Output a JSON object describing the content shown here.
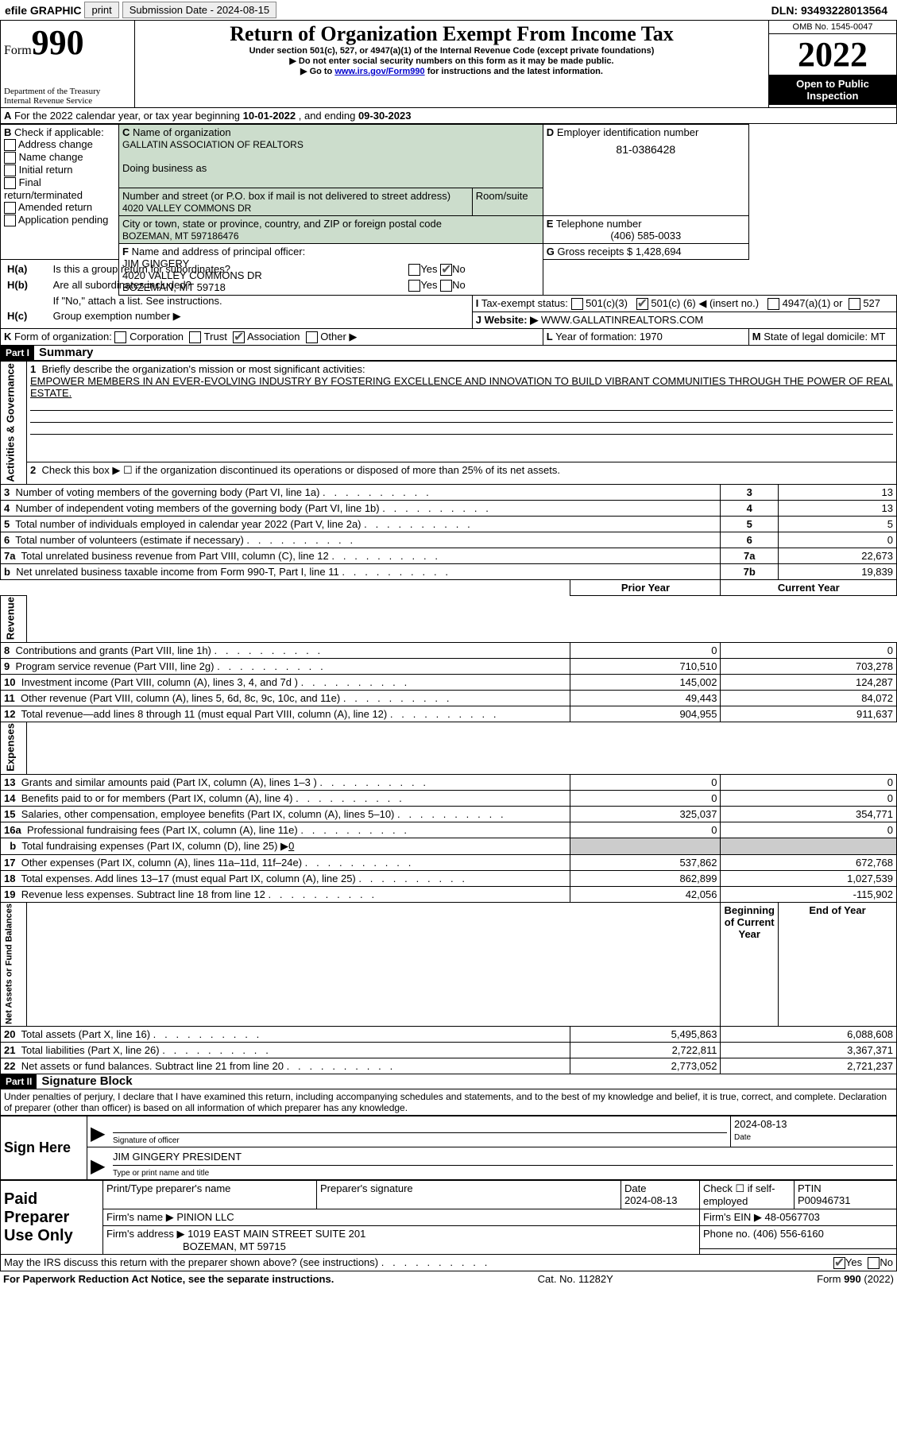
{
  "topbar": {
    "efile": "efile GRAPHIC",
    "print": "print",
    "submission": "Submission Date - 2024-08-15",
    "dln": "DLN: 93493228013564"
  },
  "header": {
    "formword": "Form",
    "formnum": "990",
    "title": "Return of Organization Exempt From Income Tax",
    "subtitle": "Under section 501(c), 527, or 4947(a)(1) of the Internal Revenue Code (except private foundations)",
    "note1": "▶ Do not enter social security numbers on this form as it may be made public.",
    "note2_pre": "▶ Go to ",
    "note2_link": "www.irs.gov/Form990",
    "note2_post": " for instructions and the latest information.",
    "dept": "Department of the Treasury",
    "irs": "Internal Revenue Service",
    "omb": "OMB No. 1545-0047",
    "year": "2022",
    "inspect1": "Open to Public",
    "inspect2": "Inspection"
  },
  "lineA": {
    "pre": "For the 2022 calendar year, or tax year beginning ",
    "begin": "10-01-2022",
    "mid": " , and ending ",
    "end": "09-30-2023"
  },
  "sectionB": {
    "label": "Check if applicable:",
    "opts": [
      "Address change",
      "Name change",
      "Initial return",
      "Final return/terminated",
      "Amended return",
      "Application pending"
    ]
  },
  "sectionC": {
    "nameLabel": "Name of organization",
    "name": "GALLATIN ASSOCIATION OF REALTORS",
    "dbaLabel": "Doing business as",
    "dba": "",
    "streetLabel": "Number and street (or P.O. box if mail is not delivered to street address)",
    "roomLabel": "Room/suite",
    "street": "4020 VALLEY COMMONS DR",
    "cityLabel": "City or town, state or province, country, and ZIP or foreign postal code",
    "city": "BOZEMAN, MT  597186476"
  },
  "sectionD": {
    "label": "Employer identification number",
    "value": "81-0386428"
  },
  "sectionE": {
    "label": "Telephone number",
    "value": "(406) 585-0033"
  },
  "sectionG": {
    "label": "Gross receipts $",
    "value": "1,428,694"
  },
  "sectionF": {
    "label": "Name and address of principal officer:",
    "line1": "JIM GINGERY",
    "line2": "4020 VALLEY COMMONS DR",
    "line3": "BOZEMAN, MT  59718"
  },
  "sectionH": {
    "ha": "Is this a group return for subordinates?",
    "hb": "Are all subordinates included?",
    "hbnote": "If \"No,\" attach a list. See instructions.",
    "hc": "Group exemption number ▶",
    "yes": "Yes",
    "no": "No"
  },
  "sectionI": {
    "label": "Tax-exempt status:",
    "c3": "501(c)(3)",
    "c_pre": "501(c) (",
    "c_num": "6",
    "c_post": ") ◀ (insert no.)",
    "a1": "4947(a)(1) or",
    "s527": "527"
  },
  "sectionJ": {
    "label": "Website: ▶",
    "value": "WWW.GALLATINREALTORS.COM"
  },
  "sectionK": {
    "label": "Form of organization:",
    "corp": "Corporation",
    "trust": "Trust",
    "assoc": "Association",
    "other": "Other ▶"
  },
  "sectionL": {
    "label": "Year of formation:",
    "value": "1970"
  },
  "sectionM": {
    "label": "State of legal domicile:",
    "value": "MT"
  },
  "part1": {
    "num": "Part I",
    "title": "Summary"
  },
  "summary": {
    "vlabelA": "Activities & Governance",
    "vlabelR": "Revenue",
    "vlabelE": "Expenses",
    "vlabelN": "Net Assets or Fund Balances",
    "line1": "Briefly describe the organization's mission or most significant activities:",
    "mission": "EMPOWER MEMBERS IN AN EVER-EVOLVING INDUSTRY BY FOSTERING EXCELLENCE AND INNOVATION TO BUILD VIBRANT COMMUNITIES THROUGH THE POWER OF REAL ESTATE.",
    "line2": "Check this box ▶ ☐ if the organization discontinued its operations or disposed of more than 25% of its net assets.",
    "rows_top": [
      {
        "n": "3",
        "t": "Number of voting members of the governing body (Part VI, line 1a)",
        "box": "3",
        "v": "13"
      },
      {
        "n": "4",
        "t": "Number of independent voting members of the governing body (Part VI, line 1b)",
        "box": "4",
        "v": "13"
      },
      {
        "n": "5",
        "t": "Total number of individuals employed in calendar year 2022 (Part V, line 2a)",
        "box": "5",
        "v": "5"
      },
      {
        "n": "6",
        "t": "Total number of volunteers (estimate if necessary)",
        "box": "6",
        "v": "0"
      },
      {
        "n": "7a",
        "t": "Total unrelated business revenue from Part VIII, column (C), line 12",
        "box": "7a",
        "v": "22,673"
      },
      {
        "n": "b",
        "t": "Net unrelated business taxable income from Form 990-T, Part I, line 11",
        "box": "7b",
        "v": "19,839"
      }
    ],
    "col_prior": "Prior Year",
    "col_current": "Current Year",
    "rows_rev": [
      {
        "n": "8",
        "t": "Contributions and grants (Part VIII, line 1h)",
        "p": "0",
        "c": "0"
      },
      {
        "n": "9",
        "t": "Program service revenue (Part VIII, line 2g)",
        "p": "710,510",
        "c": "703,278"
      },
      {
        "n": "10",
        "t": "Investment income (Part VIII, column (A), lines 3, 4, and 7d )",
        "p": "145,002",
        "c": "124,287"
      },
      {
        "n": "11",
        "t": "Other revenue (Part VIII, column (A), lines 5, 6d, 8c, 9c, 10c, and 11e)",
        "p": "49,443",
        "c": "84,072"
      },
      {
        "n": "12",
        "t": "Total revenue—add lines 8 through 11 (must equal Part VIII, column (A), line 12)",
        "p": "904,955",
        "c": "911,637"
      }
    ],
    "rows_exp": [
      {
        "n": "13",
        "t": "Grants and similar amounts paid (Part IX, column (A), lines 1–3 )",
        "p": "0",
        "c": "0"
      },
      {
        "n": "14",
        "t": "Benefits paid to or for members (Part IX, column (A), line 4)",
        "p": "0",
        "c": "0"
      },
      {
        "n": "15",
        "t": "Salaries, other compensation, employee benefits (Part IX, column (A), lines 5–10)",
        "p": "325,037",
        "c": "354,771"
      },
      {
        "n": "16a",
        "t": "Professional fundraising fees (Part IX, column (A), line 11e)",
        "p": "0",
        "c": "0"
      }
    ],
    "line16b_pre": "Total fundraising expenses (Part IX, column (D), line 25) ▶",
    "line16b_val": "0",
    "rows_exp2": [
      {
        "n": "17",
        "t": "Other expenses (Part IX, column (A), lines 11a–11d, 11f–24e)",
        "p": "537,862",
        "c": "672,768"
      },
      {
        "n": "18",
        "t": "Total expenses. Add lines 13–17 (must equal Part IX, column (A), line 25)",
        "p": "862,899",
        "c": "1,027,539"
      },
      {
        "n": "19",
        "t": "Revenue less expenses. Subtract line 18 from line 12",
        "p": "42,056",
        "c": "-115,902"
      }
    ],
    "col_begin": "Beginning of Current Year",
    "col_end": "End of Year",
    "rows_net": [
      {
        "n": "20",
        "t": "Total assets (Part X, line 16)",
        "p": "5,495,863",
        "c": "6,088,608"
      },
      {
        "n": "21",
        "t": "Total liabilities (Part X, line 26)",
        "p": "2,722,811",
        "c": "3,367,371"
      },
      {
        "n": "22",
        "t": "Net assets or fund balances. Subtract line 21 from line 20",
        "p": "2,773,052",
        "c": "2,721,237"
      }
    ]
  },
  "part2": {
    "num": "Part II",
    "title": "Signature Block",
    "penalty": "Under penalties of perjury, I declare that I have examined this return, including accompanying schedules and statements, and to the best of my knowledge and belief, it is true, correct, and complete. Declaration of preparer (other than officer) is based on all information of which preparer has any knowledge."
  },
  "sign": {
    "label": "Sign Here",
    "sigLabel": "Signature of officer",
    "date": "2024-08-13",
    "dateLabel": "Date",
    "name": "JIM GINGERY  PRESIDENT",
    "nameLabel": "Type or print name and title"
  },
  "preparer": {
    "label": "Paid Preparer Use Only",
    "h_name": "Print/Type preparer's name",
    "h_sig": "Preparer's signature",
    "h_date": "Date",
    "date": "2024-08-13",
    "h_check": "Check ☐ if self-employed",
    "h_ptin": "PTIN",
    "ptin": "P00946731",
    "firmLabel": "Firm's name    ▶",
    "firm": "PINION LLC",
    "einLabel": "Firm's EIN ▶",
    "ein": "48-0567703",
    "addrLabel": "Firm's address ▶",
    "addr1": "1019 EAST MAIN STREET SUITE 201",
    "addr2": "BOZEMAN, MT  59715",
    "phoneLabel": "Phone no.",
    "phone": "(406) 556-6160"
  },
  "discuss": {
    "text": "May the IRS discuss this return with the preparer shown above? (see instructions)",
    "yes": "Yes",
    "no": "No"
  },
  "footer": {
    "left": "For Paperwork Reduction Act Notice, see the separate instructions.",
    "mid": "Cat. No. 11282Y",
    "right": "Form 990 (2022)"
  }
}
